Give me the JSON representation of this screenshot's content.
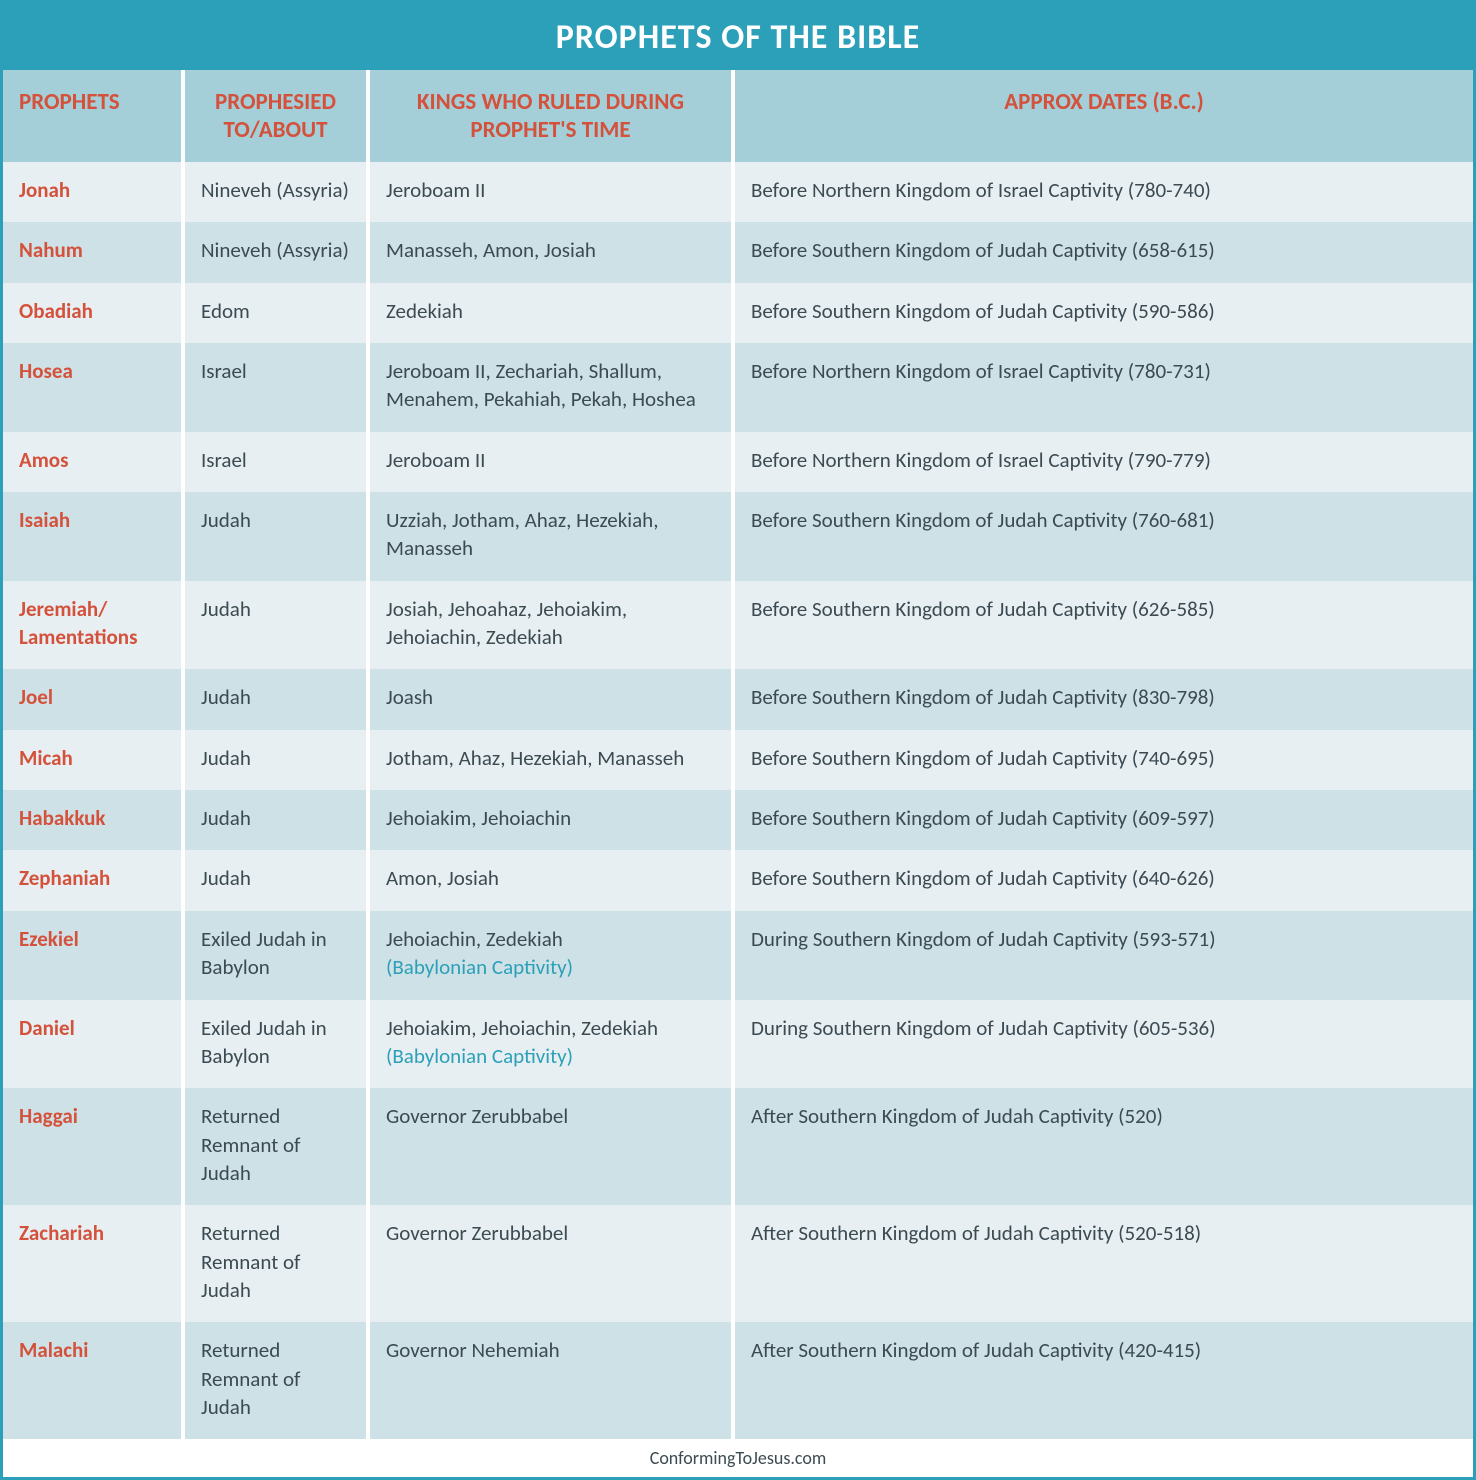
{
  "colors": {
    "border": "#2ca0b8",
    "title_bg": "#2ca0b8",
    "title_text": "#ffffff",
    "header_bg": "#a4cfd9",
    "header_text": "#d4513b",
    "row_odd": "#e7eff2",
    "row_even": "#cde1e6",
    "prophet_text": "#d4513b",
    "body_text": "#3c4a52",
    "note_text": "#2ca0b8",
    "footer_text": "#3c4a52"
  },
  "title": "PROPHETS OF THE BIBLE",
  "headers": {
    "c1": "PROPHETS",
    "c2": "PROPHESIED TO/ABOUT",
    "c3": "KINGS WHO RULED DURING PROPHET'S TIME",
    "c4": "APPROX DATES (B.C.)"
  },
  "rows": [
    {
      "prophet": "Jonah",
      "to": "Nineveh (Assyria)",
      "kings": "Jeroboam II",
      "note": "",
      "dates": "Before Northern Kingdom of Israel Captivity (780-740)"
    },
    {
      "prophet": "Nahum",
      "to": "Nineveh (Assyria)",
      "kings": "Manasseh, Amon, Josiah",
      "note": "",
      "dates": "Before Southern Kingdom of Judah Captivity (658-615)"
    },
    {
      "prophet": "Obadiah",
      "to": "Edom",
      "kings": "Zedekiah",
      "note": "",
      "dates": "Before Southern Kingdom of Judah Captivity (590-586)"
    },
    {
      "prophet": "Hosea",
      "to": "Israel",
      "kings": "Jeroboam II, Zechariah, Shallum, Menahem, Pekahiah, Pekah, Hoshea",
      "note": "",
      "dates": "Before Northern Kingdom of Israel Captivity (780-731)"
    },
    {
      "prophet": "Amos",
      "to": "Israel",
      "kings": "Jeroboam II",
      "note": "",
      "dates": "Before Northern Kingdom of Israel Captivity (790-779)"
    },
    {
      "prophet": "Isaiah",
      "to": "Judah",
      "kings": "Uzziah, Jotham, Ahaz, Hezekiah, Manasseh",
      "note": "",
      "dates": "Before Southern Kingdom of Judah Captivity (760-681)"
    },
    {
      "prophet": "Jeremiah/ Lamentations",
      "to": "Judah",
      "kings": "Josiah, Jehoahaz, Jehoiakim, Jehoiachin, Zedekiah",
      "note": "",
      "dates": "Before Southern Kingdom of Judah Captivity (626-585)"
    },
    {
      "prophet": "Joel",
      "to": "Judah",
      "kings": "Joash",
      "note": "",
      "dates": "Before Southern Kingdom of Judah Captivity (830-798)"
    },
    {
      "prophet": "Micah",
      "to": "Judah",
      "kings": "Jotham, Ahaz, Hezekiah, Manasseh",
      "note": "",
      "dates": "Before Southern Kingdom of Judah Captivity (740-695)"
    },
    {
      "prophet": "Habakkuk",
      "to": "Judah",
      "kings": "Jehoiakim, Jehoiachin",
      "note": "",
      "dates": "Before Southern Kingdom of Judah Captivity (609-597)"
    },
    {
      "prophet": "Zephaniah",
      "to": "Judah",
      "kings": "Amon, Josiah",
      "note": "",
      "dates": "Before Southern Kingdom of Judah Captivity (640-626)"
    },
    {
      "prophet": "Ezekiel",
      "to": "Exiled Judah in Babylon",
      "kings": "Jehoiachin, Zedekiah",
      "note": "(Babylonian Captivity)",
      "dates": "During Southern Kingdom of Judah Captivity (593-571)"
    },
    {
      "prophet": "Daniel",
      "to": "Exiled Judah in Babylon",
      "kings": "Jehoiakim, Jehoiachin, Zedekiah",
      "note": "(Babylonian Captivity)",
      "dates": "During Southern Kingdom of Judah Captivity (605-536)"
    },
    {
      "prophet": "Haggai",
      "to": "Returned Remnant of Judah",
      "kings": "Governor Zerubbabel",
      "note": "",
      "dates": "After Southern Kingdom of Judah Captivity (520)"
    },
    {
      "prophet": "Zachariah",
      "to": "Returned Remnant of Judah",
      "kings": "Governor Zerubbabel",
      "note": "",
      "dates": "After Southern Kingdom of Judah Captivity (520-518)"
    },
    {
      "prophet": "Malachi",
      "to": "Returned Remnant of Judah",
      "kings": "Governor Nehemiah",
      "note": "",
      "dates": "After Southern Kingdom of Judah Captivity (420-415)"
    }
  ],
  "footer": "ConformingToJesus.com"
}
